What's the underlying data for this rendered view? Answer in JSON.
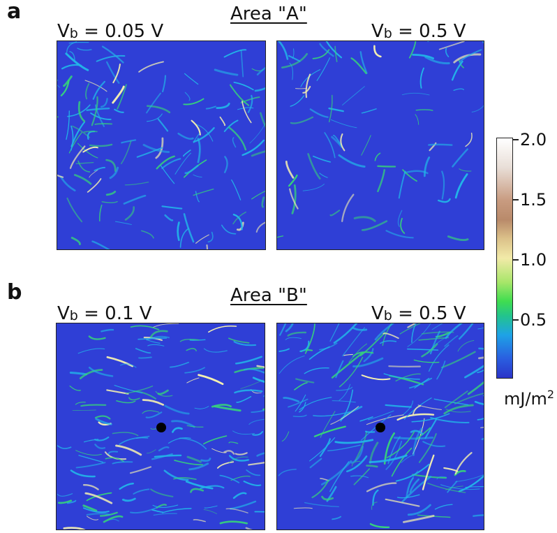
{
  "panel_a": {
    "letter": "a",
    "title": "Area \"A\"",
    "left_label": {
      "prefix": "V",
      "sub": "b",
      "value": " = 0.05 V"
    },
    "right_label": {
      "prefix": "V",
      "sub": "b",
      "value": " = 0.5 V"
    }
  },
  "panel_b": {
    "letter": "b",
    "title": "Area \"B\"",
    "left_label": {
      "prefix": "V",
      "sub": "b",
      "value": " = 0.1 V"
    },
    "right_label": {
      "prefix": "V",
      "sub": "b",
      "value": " = 0.5 V"
    }
  },
  "colorbar": {
    "ticks": [
      "2.0",
      "1.5",
      "1.0",
      "0.5"
    ],
    "unit": "mJ/m",
    "unit_sup": "2",
    "range": [
      0,
      2.0
    ]
  },
  "colors": {
    "map_background": "#2f3fd6",
    "stripe_cyan": "#22b4e8",
    "stripe_green": "#36d37a",
    "highlight_yellow": "#f4f0b0",
    "marker": "#000000"
  }
}
